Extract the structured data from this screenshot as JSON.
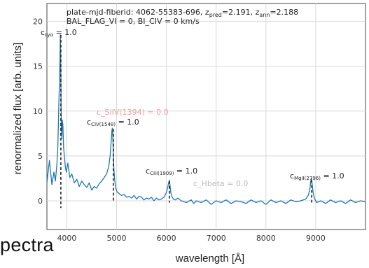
{
  "colors": {
    "series": "#1f77b4",
    "line_marker": "#222222",
    "grid": "#d9d9d9",
    "faded_annotation": "#f0a0a0",
    "faded_grey": "#bbbbbb"
  },
  "slide_text": "pectra",
  "chart_data": {
    "type": "line",
    "title_lines": [
      "plate-mjd-fiberid: 4062-55383-696, z_pred=2.191, z_ann=2.188",
      "BAL_FLAG_VI = 0, BI_CIV = 0 km/s"
    ],
    "xlabel": "wavelength [Å]",
    "ylabel": "renormalized flux [arb. units]",
    "xlim": [
      3600,
      10000
    ],
    "ylim": [
      -3.2,
      22
    ],
    "xticks": [
      4000,
      5000,
      6000,
      7000,
      8000,
      9000
    ],
    "yticks": [
      0,
      5,
      10,
      15,
      20
    ],
    "grid": true,
    "series": [
      {
        "x": [
          3600,
          3650,
          3700,
          3740,
          3770,
          3800,
          3820,
          3840,
          3860,
          3870,
          3880,
          3890,
          3900,
          3910,
          3920,
          3935,
          3950,
          3970,
          3990,
          4020,
          4060,
          4100,
          4150,
          4200,
          4250,
          4300,
          4350,
          4400,
          4450,
          4500,
          4550,
          4600,
          4650,
          4700,
          4750,
          4800,
          4840,
          4870,
          4890,
          4905,
          4915,
          4925,
          4935,
          4945,
          4960,
          4980,
          5010,
          5050,
          5100,
          5150,
          5200,
          5250,
          5300,
          5350,
          5400,
          5450,
          5500,
          5550,
          5600,
          5650,
          5700,
          5750,
          5800,
          5850,
          5900,
          5950,
          5990,
          6020,
          6040,
          6060,
          6075,
          6090,
          6110,
          6140,
          6180,
          6230,
          6300,
          6400,
          6500,
          6550,
          6600,
          6700,
          6800,
          6900,
          7000,
          7100,
          7200,
          7300,
          7400,
          7500,
          7600,
          7700,
          7800,
          7900,
          8000,
          8100,
          8200,
          8300,
          8400,
          8500,
          8600,
          8700,
          8800,
          8850,
          8880,
          8900,
          8915,
          8930,
          8950,
          8980,
          9020,
          9100,
          9200,
          9300,
          9400,
          9500,
          9600,
          9700,
          9800,
          9900,
          10000
        ],
        "y": [
          2.0,
          4.5,
          1.8,
          3.2,
          2.2,
          4.0,
          6.0,
          11.0,
          15.0,
          18.5,
          14.0,
          8.0,
          7.0,
          9.0,
          8.5,
          6.0,
          5.0,
          3.8,
          3.2,
          4.2,
          2.6,
          3.0,
          2.0,
          2.4,
          1.6,
          2.2,
          1.8,
          1.5,
          2.0,
          1.2,
          1.6,
          1.4,
          1.9,
          2.2,
          2.6,
          3.0,
          3.8,
          5.0,
          6.5,
          7.8,
          8.1,
          7.0,
          5.2,
          3.6,
          2.4,
          1.5,
          1.0,
          0.8,
          0.6,
          0.7,
          0.4,
          0.5,
          0.3,
          0.6,
          0.2,
          0.5,
          0.4,
          0.1,
          0.3,
          0.2,
          0.4,
          0.0,
          0.3,
          0.1,
          0.2,
          0.4,
          0.8,
          1.3,
          1.9,
          2.3,
          1.6,
          0.9,
          0.5,
          0.2,
          0.1,
          0.3,
          0.0,
          -0.2,
          0.1,
          -0.3,
          0.0,
          -0.2,
          0.1,
          -0.4,
          0.0,
          -0.2,
          0.1,
          -0.3,
          0.0,
          -0.1,
          -0.3,
          0.1,
          -0.2,
          0.0,
          -0.4,
          0.1,
          -0.2,
          0.0,
          -0.3,
          0.1,
          -0.1,
          0.0,
          0.2,
          0.6,
          1.2,
          2.2,
          2.5,
          1.8,
          0.8,
          0.2,
          -0.2,
          0.0,
          -0.3,
          0.1,
          -0.2,
          0.0,
          -0.3,
          0.1,
          -0.2,
          0.0,
          -0.1
        ]
      }
    ],
    "markers": [
      {
        "x": 3880,
        "y_top": 18.5,
        "y_bottom": -0.8,
        "label": "c_Lya = 1.0"
      },
      {
        "x": 4935,
        "y_top": 8.0,
        "y_bottom": -0.2,
        "label": "c_CIV(1548) = 1.0"
      },
      {
        "x": 6060,
        "y_top": 2.2,
        "y_bottom": -0.2,
        "label": "c_CIII(1909) = 1.0"
      },
      {
        "x": 8920,
        "y_top": 2.3,
        "y_bottom": -0.2,
        "label": "c_MgII(2796) = 1.0"
      }
    ],
    "faded_annotations": [
      {
        "text": "c_SiIV(1394) = 0.0",
        "color": "#f0a0a0"
      },
      {
        "text": "c_Hbeta = 0.0",
        "color": "#bbbbbb"
      }
    ]
  }
}
